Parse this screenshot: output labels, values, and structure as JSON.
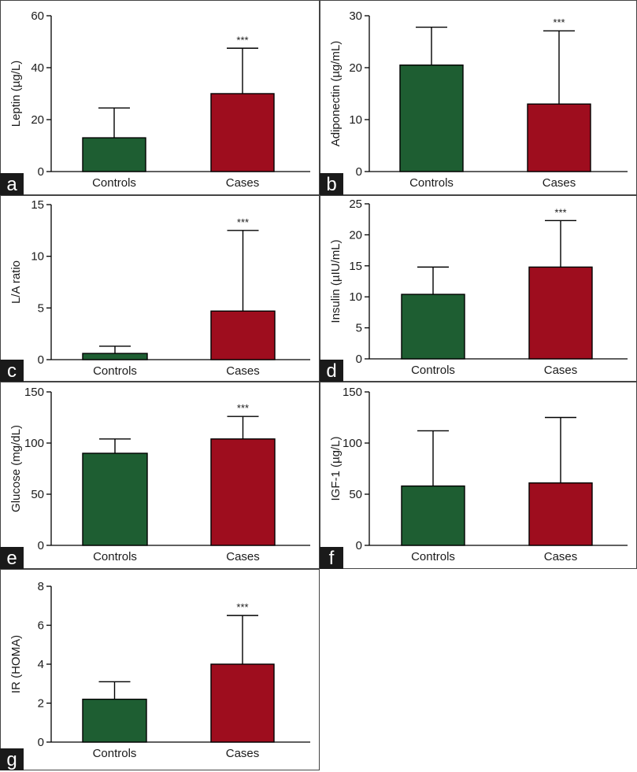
{
  "colors": {
    "controls": "#1e5e32",
    "cases": "#9e0d1e",
    "frame": "#444444",
    "label_bg": "#1a1a1a"
  },
  "chart_data": [
    {
      "type": "bar",
      "panel": "a",
      "ylabel": "Leptin (µg/L)",
      "categories": [
        "Controls",
        "Cases"
      ],
      "values": [
        13,
        30
      ],
      "errors": [
        24.5,
        47.5
      ],
      "significance": [
        "",
        "***"
      ],
      "ylim": [
        0,
        60
      ],
      "yticks": [
        "0",
        "20",
        "40",
        "60"
      ]
    },
    {
      "type": "bar",
      "panel": "b",
      "ylabel": "Adiponectin (µg/mL)",
      "categories": [
        "Controls",
        "Cases"
      ],
      "values": [
        20.5,
        13
      ],
      "errors": [
        27.8,
        27.1
      ],
      "significance": [
        "",
        "***"
      ],
      "ylim": [
        0,
        30
      ],
      "yticks": [
        "0",
        "10",
        "20",
        "30"
      ]
    },
    {
      "type": "bar",
      "panel": "c",
      "ylabel": "L/A ratio",
      "categories": [
        "Controls",
        "Cases"
      ],
      "values": [
        0.6,
        4.7
      ],
      "errors": [
        1.3,
        12.5
      ],
      "significance": [
        "",
        "***"
      ],
      "ylim": [
        0,
        15
      ],
      "yticks": [
        "0",
        "5",
        "10",
        "15"
      ]
    },
    {
      "type": "bar",
      "panel": "d",
      "ylabel": "Insulin (µIU/mL)",
      "categories": [
        "Controls",
        "Cases"
      ],
      "values": [
        10.4,
        14.8
      ],
      "errors": [
        14.8,
        22.3
      ],
      "significance": [
        "",
        "***"
      ],
      "ylim": [
        0,
        25
      ],
      "yticks": [
        "0",
        "5",
        "10",
        "15",
        "20",
        "25"
      ]
    },
    {
      "type": "bar",
      "panel": "e",
      "ylabel": "Glucose (mg/dL)",
      "categories": [
        "Controls",
        "Cases"
      ],
      "values": [
        90,
        104
      ],
      "errors": [
        104,
        126
      ],
      "significance": [
        "",
        "***"
      ],
      "ylim": [
        0,
        150
      ],
      "yticks": [
        "0",
        "50",
        "100",
        "150"
      ]
    },
    {
      "type": "bar",
      "panel": "f",
      "ylabel": "IGF-1 (µg/L)",
      "categories": [
        "Controls",
        "Cases"
      ],
      "values": [
        58,
        61
      ],
      "errors": [
        112,
        125
      ],
      "significance": [
        "",
        ""
      ],
      "ylim": [
        0,
        150
      ],
      "yticks": [
        "0",
        "50",
        "100",
        "150"
      ]
    },
    {
      "type": "bar",
      "panel": "g",
      "ylabel": "IR (HOMA)",
      "categories": [
        "Controls",
        "Cases"
      ],
      "values": [
        2.2,
        4.0
      ],
      "errors": [
        3.1,
        6.5
      ],
      "significance": [
        "",
        "***"
      ],
      "ylim": [
        0,
        8
      ],
      "yticks": [
        "0",
        "2",
        "4",
        "6",
        "8"
      ]
    }
  ]
}
